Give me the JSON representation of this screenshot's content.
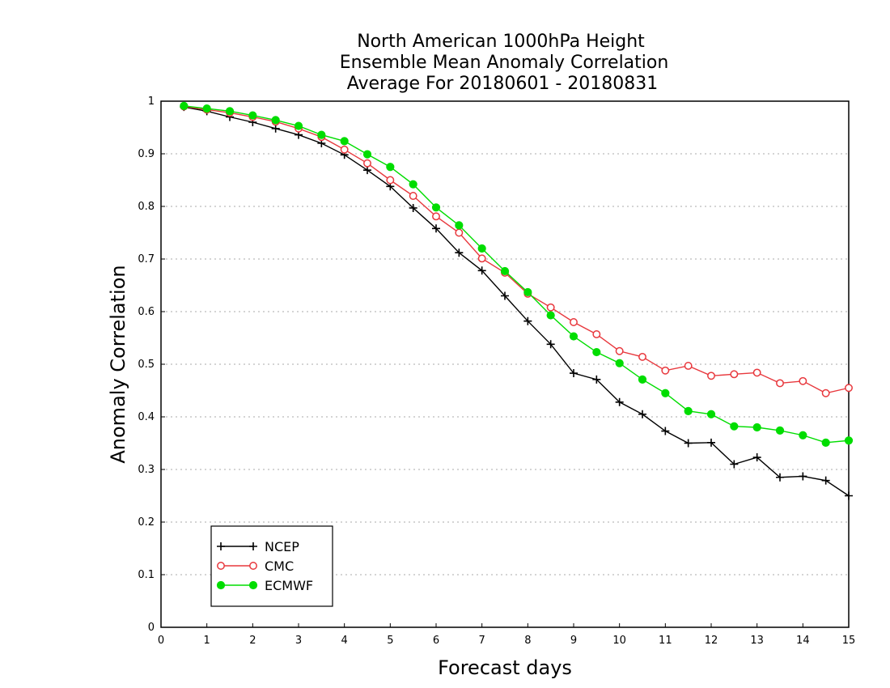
{
  "chart_data": {
    "type": "line",
    "title": [
      "North American 1000hPa Height",
      "Ensemble Mean Anomaly Correlation",
      "Average For 20180601 - 20180831"
    ],
    "xlabel": "Forecast days",
    "ylabel": "Anomaly Correlation",
    "xlim": [
      0,
      15
    ],
    "ylim": [
      0,
      1
    ],
    "x_ticks": [
      "0",
      "1",
      "2",
      "3",
      "4",
      "5",
      "6",
      "7",
      "8",
      "9",
      "10",
      "11",
      "12",
      "13",
      "14",
      "15"
    ],
    "y_ticks": [
      "0",
      "0.1",
      "0.2",
      "0.3",
      "0.4",
      "0.5",
      "0.6",
      "0.7",
      "0.8",
      "0.9",
      "1"
    ],
    "grid": "dotted horizontal",
    "legend_position": "bottom-left",
    "x": [
      0.5,
      1,
      1.5,
      2,
      2.5,
      3,
      3.5,
      4,
      4.5,
      5,
      5.5,
      6,
      6.5,
      7,
      7.5,
      8,
      8.5,
      9,
      9.5,
      10,
      10.5,
      11,
      11.5,
      12,
      12.5,
      13,
      13.5,
      14,
      14.5,
      15
    ],
    "series": [
      {
        "name": "NCEP",
        "color": "#000000",
        "marker": "plus",
        "values": [
          0.989,
          0.981,
          0.97,
          0.96,
          0.948,
          0.936,
          0.92,
          0.898,
          0.869,
          0.838,
          0.797,
          0.758,
          0.712,
          0.678,
          0.63,
          0.582,
          0.538,
          0.483,
          0.471,
          0.428,
          0.405,
          0.373,
          0.35,
          0.351,
          0.31,
          0.323,
          0.285,
          0.287,
          0.279,
          0.25
        ]
      },
      {
        "name": "CMC",
        "color": "#e8383d",
        "marker": "open-circle",
        "values": [
          0.99,
          0.984,
          0.978,
          0.97,
          0.961,
          0.948,
          0.932,
          0.908,
          0.882,
          0.85,
          0.82,
          0.781,
          0.75,
          0.701,
          0.674,
          0.634,
          0.608,
          0.58,
          0.557,
          0.525,
          0.514,
          0.488,
          0.497,
          0.478,
          0.481,
          0.484,
          0.464,
          0.468,
          0.445,
          0.455
        ]
      },
      {
        "name": "ECMWF",
        "color": "#00dd00",
        "marker": "filled-circle",
        "values": [
          0.991,
          0.986,
          0.981,
          0.973,
          0.964,
          0.953,
          0.936,
          0.924,
          0.899,
          0.875,
          0.842,
          0.798,
          0.764,
          0.72,
          0.677,
          0.637,
          0.593,
          0.553,
          0.523,
          0.502,
          0.471,
          0.445,
          0.411,
          0.405,
          0.382,
          0.38,
          0.374,
          0.365,
          0.351,
          0.355
        ]
      }
    ]
  }
}
